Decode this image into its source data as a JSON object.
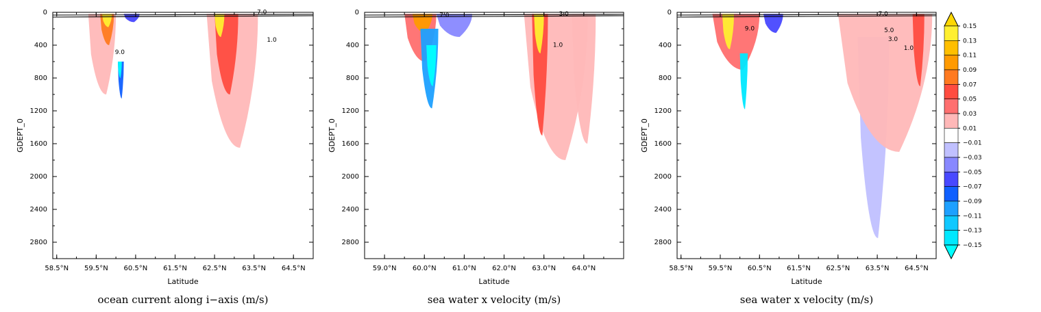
{
  "chart_data": [
    {
      "type": "contour",
      "title": "ocean current along i−axis (m/s)",
      "xlabel": "Latitude",
      "ylabel": "GDEPT_0",
      "xlim": [
        58.4,
        65.0
      ],
      "ylim": [
        3000,
        0
      ],
      "y_ticks": [
        "0",
        "400",
        "800",
        "1200",
        "1600",
        "2000",
        "2400",
        "2800"
      ],
      "x_ticks": [
        "58.5°N",
        "59.5°N",
        "60.5°N",
        "61.5°N",
        "62.5°N",
        "63.5°N",
        "64.5°N"
      ],
      "x_tick_values": [
        58.5,
        59.5,
        60.5,
        61.5,
        62.5,
        63.5,
        64.5
      ],
      "contour_labels": [
        {
          "text": "7.0",
          "lat": 63.7,
          "depth": 20
        },
        {
          "text": "1.0",
          "lat": 63.95,
          "depth": 360
        },
        {
          "text": "9.0",
          "lat": 60.1,
          "depth": 510
        }
      ],
      "features": [
        {
          "lat": [
            59.3,
            60.0
          ],
          "depth": [
            20,
            1000
          ],
          "value": 0.03
        },
        {
          "lat": [
            59.6,
            59.95
          ],
          "depth": [
            20,
            400
          ],
          "value": 0.09
        },
        {
          "lat": [
            59.65,
            59.9
          ],
          "depth": [
            20,
            180
          ],
          "value": 0.15
        },
        {
          "lat": [
            60.05,
            60.2
          ],
          "depth": [
            600,
            1050
          ],
          "value": -0.07
        },
        {
          "lat": [
            60.05,
            60.15
          ],
          "depth": [
            600,
            800
          ],
          "value": -0.15
        },
        {
          "lat": [
            60.2,
            60.6
          ],
          "depth": [
            20,
            120
          ],
          "value": -0.05
        },
        {
          "lat": [
            62.3,
            63.6
          ],
          "depth": [
            20,
            1650
          ],
          "value": 0.03
        },
        {
          "lat": [
            62.5,
            63.1
          ],
          "depth": [
            20,
            1000
          ],
          "value": 0.07
        },
        {
          "lat": [
            62.5,
            62.75
          ],
          "depth": [
            20,
            300
          ],
          "value": 0.15
        }
      ]
    },
    {
      "type": "contour",
      "title": "sea water x velocity (m/s)",
      "xlabel": "Latitude",
      "ylabel": "GDEPT_0",
      "xlim": [
        58.5,
        65.0
      ],
      "ylim": [
        3000,
        0
      ],
      "y_ticks": [
        "0",
        "400",
        "800",
        "1200",
        "1600",
        "2000",
        "2400",
        "2800"
      ],
      "x_ticks": [
        "59.0°N",
        "60.0°N",
        "61.0°N",
        "62.0°N",
        "63.0°N",
        "64.0°N"
      ],
      "x_tick_values": [
        59.0,
        60.0,
        61.0,
        62.0,
        63.0,
        64.0
      ],
      "contour_labels": [
        {
          "text": "7.0",
          "lat": 60.5,
          "depth": 60
        },
        {
          "text": "3.0",
          "lat": 63.5,
          "depth": 40
        },
        {
          "text": "1.0",
          "lat": 63.35,
          "depth": 420
        }
      ],
      "features": [
        {
          "lat": [
            59.5,
            60.3
          ],
          "depth": [
            20,
            600
          ],
          "value": 0.05
        },
        {
          "lat": [
            59.7,
            60.2
          ],
          "depth": [
            20,
            250
          ],
          "value": 0.11
        },
        {
          "lat": [
            59.9,
            60.35
          ],
          "depth": [
            200,
            1170
          ],
          "value": -0.09
        },
        {
          "lat": [
            60.05,
            60.3
          ],
          "depth": [
            400,
            900
          ],
          "value": -0.15
        },
        {
          "lat": [
            60.3,
            61.2
          ],
          "depth": [
            20,
            300
          ],
          "value": -0.03
        },
        {
          "lat": [
            62.5,
            64.1
          ],
          "depth": [
            20,
            1800
          ],
          "value": 0.03
        },
        {
          "lat": [
            62.7,
            63.1
          ],
          "depth": [
            20,
            1500
          ],
          "value": 0.07
        },
        {
          "lat": [
            62.75,
            63.0
          ],
          "depth": [
            20,
            500
          ],
          "value": 0.15
        },
        {
          "lat": [
            63.7,
            64.3
          ],
          "depth": [
            20,
            1600
          ],
          "value": 0.03
        }
      ]
    },
    {
      "type": "contour",
      "title": "sea water x velocity (m/s)",
      "xlabel": "Latitude",
      "ylabel": "GDEPT_0",
      "xlim": [
        58.4,
        65.0
      ],
      "ylim": [
        3000,
        0
      ],
      "y_ticks": [
        "0",
        "400",
        "800",
        "1200",
        "1600",
        "2000",
        "2400",
        "2800"
      ],
      "x_ticks": [
        "58.5°N",
        "59.5°N",
        "60.5°N",
        "61.5°N",
        "62.5°N",
        "63.5°N",
        "64.5°N"
      ],
      "x_tick_values": [
        58.5,
        59.5,
        60.5,
        61.5,
        62.5,
        63.5,
        64.5
      ],
      "contour_labels": [
        {
          "text": "7.0",
          "lat": 63.65,
          "depth": 40
        },
        {
          "text": "9.0",
          "lat": 60.25,
          "depth": 220
        },
        {
          "text": "5.0",
          "lat": 63.8,
          "depth": 240
        },
        {
          "text": "3.0",
          "lat": 63.9,
          "depth": 350
        },
        {
          "text": "1.0",
          "lat": 64.3,
          "depth": 460
        }
      ],
      "features": [
        {
          "lat": [
            59.3,
            60.5
          ],
          "depth": [
            20,
            700
          ],
          "value": 0.05
        },
        {
          "lat": [
            59.55,
            59.85
          ],
          "depth": [
            20,
            450
          ],
          "value": 0.15
        },
        {
          "lat": [
            60.0,
            60.2
          ],
          "depth": [
            500,
            1180
          ],
          "value": -0.13
        },
        {
          "lat": [
            60.6,
            61.1
          ],
          "depth": [
            20,
            250
          ],
          "value": -0.05
        },
        {
          "lat": [
            63.0,
            63.8
          ],
          "depth": [
            300,
            2750
          ],
          "value": -0.01
        },
        {
          "lat": [
            62.5,
            64.9
          ],
          "depth": [
            20,
            1700
          ],
          "value": 0.03
        },
        {
          "lat": [
            64.4,
            64.7
          ],
          "depth": [
            20,
            900
          ],
          "value": 0.07
        }
      ]
    }
  ],
  "colorbar": {
    "labels": [
      "0.15",
      "0.13",
      "0.11",
      "0.09",
      "0.07",
      "0.05",
      "0.03",
      "0.01",
      "−0.01",
      "−0.03",
      "−0.05",
      "−0.07",
      "−0.09",
      "−0.11",
      "−0.13",
      "−0.15"
    ],
    "colors": [
      "#ffd700",
      "#ffef30",
      "#ffbf00",
      "#ff9a00",
      "#ff7a20",
      "#ff4c40",
      "#ff6f6f",
      "#ffb8b8",
      "#ffffff",
      "#c0c0ff",
      "#8888ff",
      "#4848ff",
      "#1060ff",
      "#1ea0ff",
      "#10c8ff",
      "#00e8ff",
      "#00ffff"
    ]
  }
}
